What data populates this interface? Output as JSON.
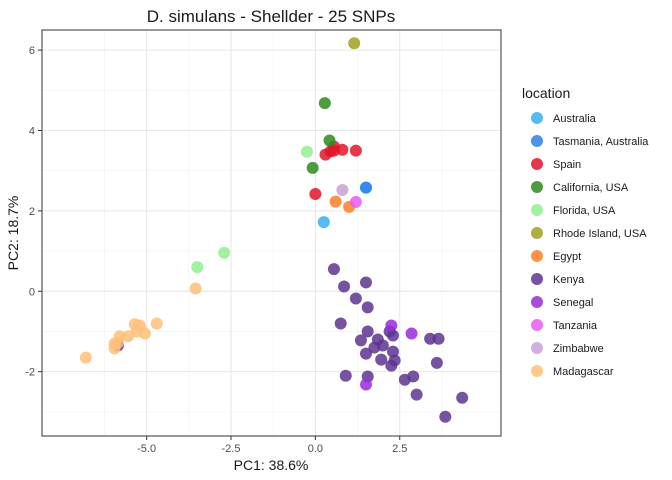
{
  "chart_data": {
    "type": "scatter",
    "title": "D. simulans - Shellder - 25 SNPs",
    "xlabel": "PC1: 38.6%",
    "ylabel": "PC2: 18.7%",
    "xlim": [
      -8.1,
      5.5
    ],
    "ylim": [
      -3.6,
      6.5
    ],
    "xticks": [
      -5.0,
      -2.5,
      0.0,
      2.5
    ],
    "xtick_labels": [
      "-5.0",
      "-2.5",
      "0.0",
      "2.5"
    ],
    "yticks": [
      -2,
      0,
      2,
      4,
      6
    ],
    "ytick_labels": [
      "-2",
      "0",
      "2",
      "4",
      "6"
    ],
    "grid": true,
    "legend_title": "location",
    "legend_position": "right",
    "series": [
      {
        "name": "Australia",
        "color": "#3AADF4",
        "points": [
          [
            1.5,
            2.58
          ],
          [
            0.25,
            1.72
          ]
        ]
      },
      {
        "name": "Tasmania, Australia",
        "color": "#2F7FEB",
        "points": [
          [
            1.5,
            2.58
          ]
        ]
      },
      {
        "name": "Spain",
        "color": "#E0162B",
        "points": [
          [
            0.0,
            2.42
          ],
          [
            0.3,
            3.4
          ],
          [
            0.45,
            3.48
          ],
          [
            0.55,
            3.6
          ],
          [
            0.55,
            3.5
          ],
          [
            0.8,
            3.52
          ],
          [
            1.2,
            3.5
          ]
        ]
      },
      {
        "name": "California, USA",
        "color": "#2E8B1E",
        "points": [
          [
            0.28,
            4.68
          ],
          [
            0.42,
            3.75
          ],
          [
            -0.08,
            3.07
          ]
        ]
      },
      {
        "name": "Florida, USA",
        "color": "#90EE90",
        "points": [
          [
            -0.25,
            3.47
          ],
          [
            -2.7,
            0.96
          ],
          [
            -3.5,
            0.6
          ]
        ]
      },
      {
        "name": "Rhode Island, USA",
        "color": "#A0A020",
        "points": [
          [
            1.15,
            6.17
          ]
        ]
      },
      {
        "name": "Egypt",
        "color": "#FF7F24",
        "points": [
          [
            0.6,
            2.23
          ],
          [
            1.0,
            2.1
          ]
        ]
      },
      {
        "name": "Kenya",
        "color": "#5E3590",
        "points": [
          [
            0.55,
            0.55
          ],
          [
            1.5,
            0.22
          ],
          [
            0.85,
            0.12
          ],
          [
            1.2,
            -0.18
          ],
          [
            1.55,
            -0.4
          ],
          [
            0.75,
            -0.8
          ],
          [
            1.55,
            -1.0
          ],
          [
            1.35,
            -1.22
          ],
          [
            1.85,
            -1.2
          ],
          [
            2.2,
            -1.0
          ],
          [
            2.3,
            -1.1
          ],
          [
            1.5,
            -1.55
          ],
          [
            1.75,
            -1.4
          ],
          [
            2.0,
            -1.35
          ],
          [
            2.3,
            -1.5
          ],
          [
            1.95,
            -1.7
          ],
          [
            2.25,
            -1.85
          ],
          [
            2.35,
            -1.72
          ],
          [
            2.65,
            -2.2
          ],
          [
            2.9,
            -2.12
          ],
          [
            0.9,
            -2.1
          ],
          [
            1.55,
            -2.12
          ],
          [
            3.4,
            -1.18
          ],
          [
            3.65,
            -1.18
          ],
          [
            3.6,
            -1.78
          ],
          [
            3.0,
            -2.57
          ],
          [
            3.85,
            -3.12
          ],
          [
            4.35,
            -2.65
          ],
          [
            -5.85,
            -1.35
          ]
        ]
      },
      {
        "name": "Senegal",
        "color": "#9A2BD9",
        "points": [
          [
            2.25,
            -0.85
          ],
          [
            2.85,
            -1.05
          ],
          [
            1.5,
            -2.32
          ]
        ]
      },
      {
        "name": "Tanzania",
        "color": "#E65CF0",
        "points": [
          [
            1.2,
            2.22
          ]
        ]
      },
      {
        "name": "Zimbabwe",
        "color": "#C8A2D6",
        "points": [
          [
            0.8,
            2.52
          ]
        ]
      },
      {
        "name": "Madagascar",
        "color": "#FFC079",
        "points": [
          [
            -3.55,
            0.07
          ],
          [
            -4.7,
            -0.8
          ],
          [
            -5.05,
            -1.05
          ],
          [
            -5.2,
            -0.85
          ],
          [
            -5.35,
            -0.82
          ],
          [
            -5.3,
            -1.0
          ],
          [
            -5.55,
            -1.12
          ],
          [
            -5.8,
            -1.12
          ],
          [
            -5.95,
            -1.3
          ],
          [
            -5.95,
            -1.42
          ],
          [
            -5.85,
            -1.28
          ],
          [
            -6.8,
            -1.65
          ]
        ]
      }
    ]
  }
}
